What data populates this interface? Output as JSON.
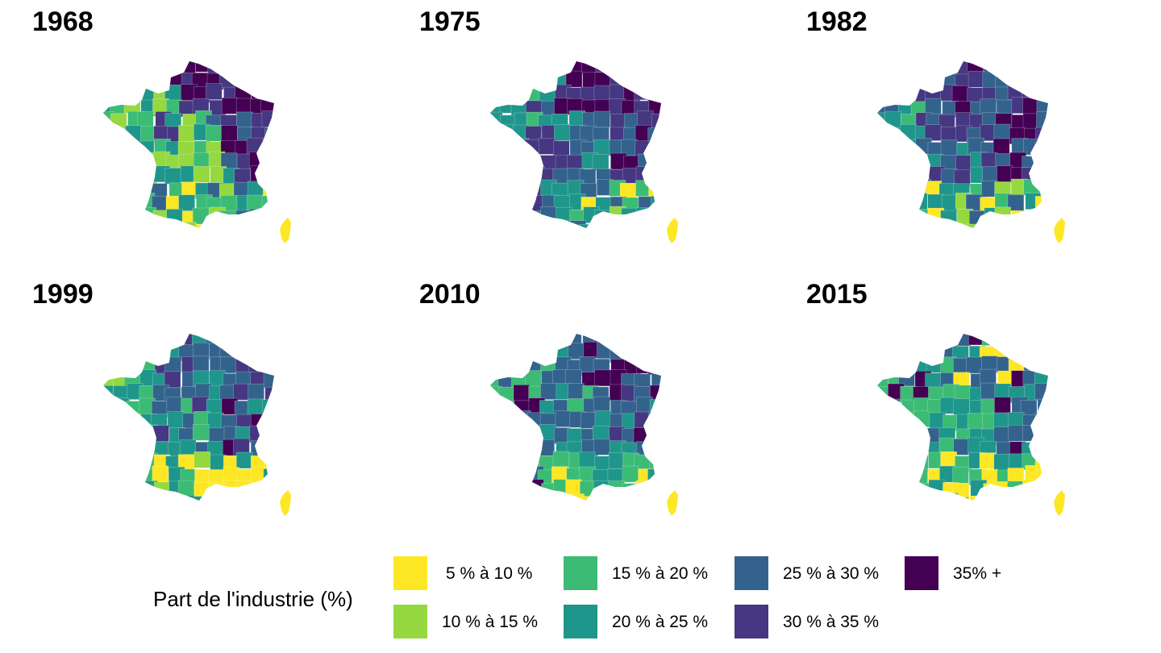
{
  "legend": {
    "title": "Part de l'industrie (%)",
    "classes": [
      {
        "label": "5 % à 10 %",
        "color": "#FDE725"
      },
      {
        "label": "10 % à 15 %",
        "color": "#95D840"
      },
      {
        "label": "15 % à 20 %",
        "color": "#3CBB75"
      },
      {
        "label": "20 % à 25 %",
        "color": "#1F968B"
      },
      {
        "label": "25 % à 30 %",
        "color": "#33638D"
      },
      {
        "label": "30 % à 35 %",
        "color": "#453781"
      },
      {
        "label": "35% +",
        "color": "#440154"
      }
    ]
  },
  "maps": [
    {
      "year": "1968"
    },
    {
      "year": "1975"
    },
    {
      "year": "1982"
    },
    {
      "year": "1999"
    },
    {
      "year": "2010"
    },
    {
      "year": "2015"
    }
  ]
}
